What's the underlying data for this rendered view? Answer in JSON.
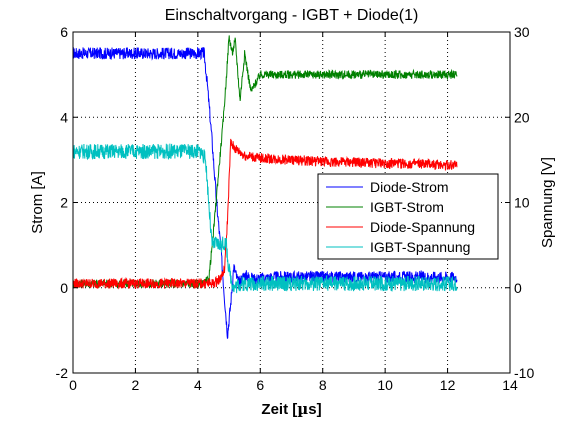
{
  "chart_data": {
    "type": "line",
    "title": "Einschaltvorgang - IGBT + Diode(1)",
    "xlabel_prefix": "Zeit [",
    "xlabel_symbol": "µ",
    "xlabel_suffix": "s]",
    "ylabel_left": "Strom [A]",
    "ylabel_right": "Spannung [V]",
    "xlim": [
      0,
      14
    ],
    "ylim_left": [
      -2,
      6
    ],
    "ylim_right": [
      -10,
      30
    ],
    "xticks": [
      "0",
      "2",
      "4",
      "6",
      "8",
      "10",
      "12",
      "14"
    ],
    "yticks_left": [
      "-2",
      "0",
      "2",
      "4",
      "6"
    ],
    "yticks_right": [
      "-10",
      "0",
      "10",
      "20",
      "30"
    ],
    "grid": true,
    "legend_position": "center-right",
    "series": [
      {
        "name": "Diode-Strom",
        "axis": "left",
        "color": "#0000ff",
        "noise": 0.14,
        "x": [
          0,
          4.2,
          4.3,
          4.45,
          4.6,
          4.75,
          4.85,
          4.95,
          5.05,
          5.15,
          5.3,
          5.5,
          5.8,
          6.5,
          12.3
        ],
        "y": [
          5.5,
          5.5,
          4.8,
          3.5,
          2.0,
          0.8,
          -0.2,
          -1.1,
          -0.4,
          0.5,
          0.1,
          0.3,
          0.2,
          0.25,
          0.25
        ]
      },
      {
        "name": "IGBT-Strom",
        "axis": "left",
        "color": "#008000",
        "noise": 0.1,
        "x": [
          0,
          4.2,
          4.35,
          4.5,
          4.65,
          4.8,
          4.9,
          5.0,
          5.1,
          5.2,
          5.35,
          5.5,
          5.7,
          6.0,
          12.3
        ],
        "y": [
          0.1,
          0.1,
          0.2,
          1.3,
          2.6,
          3.8,
          4.8,
          5.9,
          5.5,
          5.8,
          4.4,
          5.5,
          4.6,
          5.0,
          5.0
        ]
      },
      {
        "name": "Diode-Spannung",
        "axis": "right",
        "color": "#ff0000",
        "noise": 0.12,
        "x": [
          0,
          4.5,
          4.7,
          4.85,
          4.95,
          5.05,
          5.2,
          5.5,
          6.0,
          7.0,
          8.0,
          10.0,
          12.3
        ],
        "y": [
          0.5,
          0.5,
          1.0,
          2.0,
          8.0,
          17.0,
          16.3,
          15.5,
          15.2,
          15.0,
          14.8,
          14.6,
          14.4
        ]
      },
      {
        "name": "IGBT-Spannung",
        "axis": "right",
        "color": "#00c0c0",
        "noise": 0.18,
        "x": [
          0,
          4.1,
          4.25,
          4.35,
          4.45,
          4.6,
          4.75,
          4.9,
          5.0,
          5.15,
          5.3,
          5.5,
          12.3
        ],
        "y": [
          16.0,
          16.0,
          15.0,
          10.0,
          5.0,
          5.2,
          5.0,
          5.3,
          2.0,
          0.0,
          0.4,
          0.5,
          0.5
        ]
      }
    ]
  }
}
